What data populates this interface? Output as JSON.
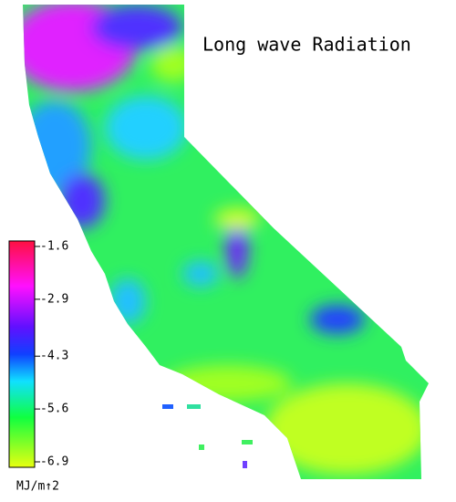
{
  "title": "Long wave Radiation",
  "colorbar": {
    "ticks": [
      -1.6,
      -2.9,
      -4.3,
      -5.6,
      -6.9
    ],
    "unit": "MJ/m↑2"
  }
}
